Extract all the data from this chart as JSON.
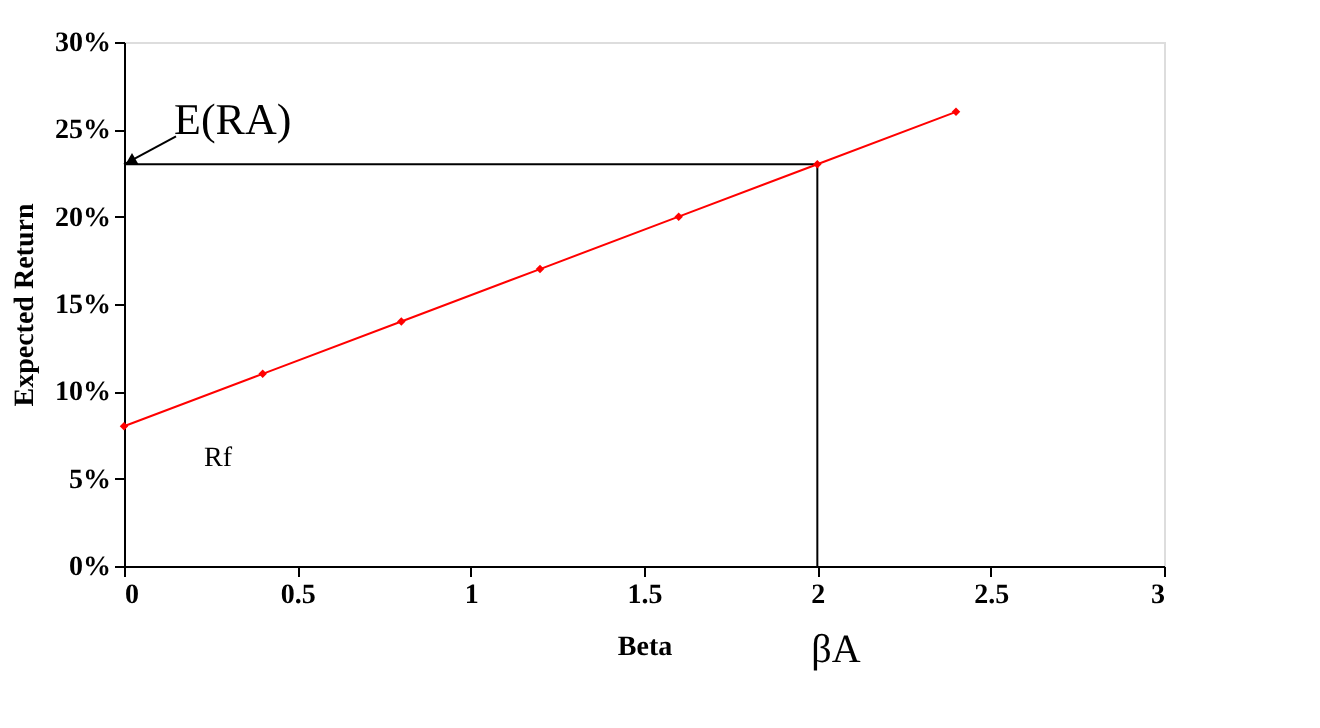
{
  "chart_data": {
    "type": "line",
    "xlabel": "Beta",
    "ylabel": "Expected Return",
    "x": [
      0,
      0.4,
      0.8,
      1.2,
      1.6,
      2.0,
      2.4
    ],
    "series": [
      {
        "color": "#ff0000",
        "values": [
          8,
          11,
          14,
          17,
          20,
          23,
          26
        ]
      }
    ],
    "xlim": [
      0,
      3
    ],
    "xticks": [
      0,
      0.5,
      1,
      1.5,
      2,
      2.5,
      3
    ],
    "ylim": [
      0,
      30
    ],
    "yticks": [
      {
        "value": 0,
        "label": "0%"
      },
      {
        "value": 5,
        "label": "5%"
      },
      {
        "value": 10,
        "label": "10%"
      },
      {
        "value": 15,
        "label": "15%"
      },
      {
        "value": 20,
        "label": "20%"
      },
      {
        "value": 25,
        "label": "25%"
      },
      {
        "value": 30,
        "label": "30%"
      }
    ],
    "ref_lines": [
      {
        "axis": "y",
        "value": 23,
        "label": "E(RA)",
        "color": "#000000"
      },
      {
        "axis": "x",
        "value": 2,
        "label": "βA",
        "color": "#000000"
      }
    ],
    "annotations": [
      {
        "text": "Rf",
        "x": 0,
        "y": 8
      }
    ],
    "marker": "diamond",
    "line_style": "solid",
    "grid": false
  }
}
